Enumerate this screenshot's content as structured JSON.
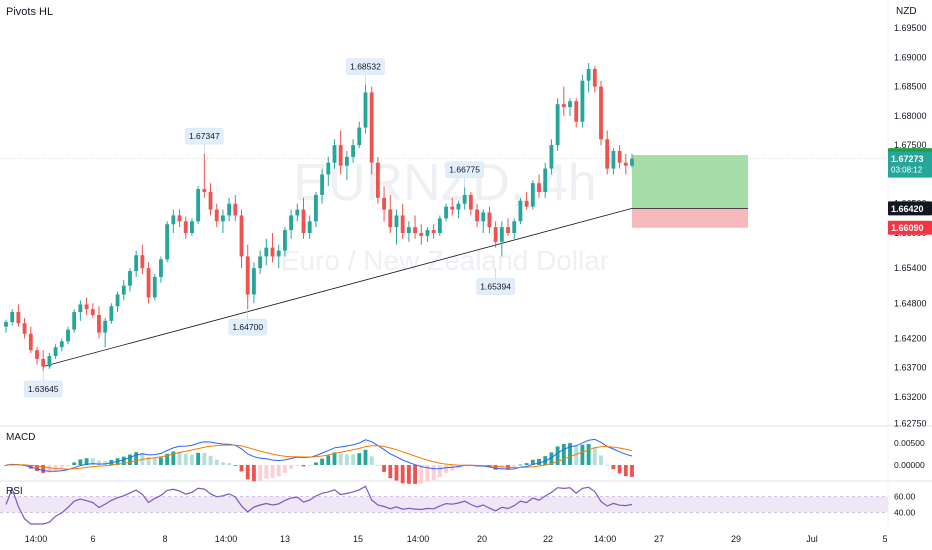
{
  "indicator_main": "Pivots HL",
  "price_axis": {
    "currency": "NZD",
    "ticks": [
      "1.69500",
      "1.69000",
      "1.68500",
      "1.68000",
      "1.67500",
      "1.66500",
      "1.66000",
      "1.65400",
      "1.64800",
      "1.64200",
      "1.63700",
      "1.63200",
      "1.62750"
    ]
  },
  "watermark": {
    "symbol": "EURNZD, 4h",
    "name": "Euro / New Zealand Dollar"
  },
  "price_tags": {
    "target": "1.67330",
    "last": "1.67273",
    "countdown": "03:08:12",
    "entry": "1.66420",
    "stop": "1.66090"
  },
  "colors": {
    "up": "#26a69a",
    "down": "#ef5350",
    "target_zone": "#a5dca8",
    "stop_zone": "#f6b9bc",
    "macd_line": "#2962ff",
    "signal_line": "#f57c00",
    "rsi_line": "#7e57c2",
    "rsi_band": "#ede7f6"
  },
  "pivots": [
    "1.63645",
    "1.67347",
    "1.64700",
    "1.68532",
    "1.66775",
    "1.65394"
  ],
  "time_axis": [
    "14:00",
    "6",
    "8",
    "14:00",
    "13",
    "15",
    "14:00",
    "20",
    "22",
    "14:00",
    "27",
    "29",
    "Jul",
    "5"
  ],
  "macd": {
    "label": "MACD",
    "ticks": [
      "0.00500",
      "0.00000"
    ]
  },
  "rsi": {
    "label": "RSI",
    "ticks": [
      "60.00",
      "40.00"
    ]
  },
  "chart_data": {
    "type": "candlestick",
    "symbol": "EURNZD",
    "timeframe": "4h",
    "y_range": [
      1.6275,
      1.697
    ],
    "ohlc": [
      [
        1.644,
        1.6452,
        1.643,
        1.6448
      ],
      [
        1.6448,
        1.647,
        1.6442,
        1.6465
      ],
      [
        1.6465,
        1.6478,
        1.644,
        1.6446
      ],
      [
        1.6446,
        1.6455,
        1.642,
        1.6428
      ],
      [
        1.6428,
        1.644,
        1.6395,
        1.64
      ],
      [
        1.64,
        1.6405,
        1.6375,
        1.6385
      ],
      [
        1.6385,
        1.64,
        1.6365,
        1.6372
      ],
      [
        1.6372,
        1.6395,
        1.6368,
        1.639
      ],
      [
        1.639,
        1.641,
        1.6385,
        1.6405
      ],
      [
        1.6405,
        1.642,
        1.6398,
        1.6415
      ],
      [
        1.6415,
        1.644,
        1.641,
        1.6435
      ],
      [
        1.6435,
        1.647,
        1.643,
        1.6465
      ],
      [
        1.6465,
        1.6485,
        1.645,
        1.6478
      ],
      [
        1.6478,
        1.649,
        1.646,
        1.647
      ],
      [
        1.647,
        1.648,
        1.6455,
        1.646
      ],
      [
        1.646,
        1.6475,
        1.642,
        1.643
      ],
      [
        1.643,
        1.6455,
        1.6405,
        1.645
      ],
      [
        1.645,
        1.648,
        1.6445,
        1.6475
      ],
      [
        1.6475,
        1.65,
        1.6465,
        1.6495
      ],
      [
        1.6495,
        1.652,
        1.6485,
        1.651
      ],
      [
        1.651,
        1.654,
        1.65,
        1.6535
      ],
      [
        1.6535,
        1.657,
        1.6525,
        1.6562
      ],
      [
        1.6562,
        1.658,
        1.653,
        1.654
      ],
      [
        1.654,
        1.655,
        1.648,
        1.649
      ],
      [
        1.649,
        1.653,
        1.6485,
        1.6525
      ],
      [
        1.6525,
        1.656,
        1.6515,
        1.6555
      ],
      [
        1.6555,
        1.662,
        1.655,
        1.6615
      ],
      [
        1.6615,
        1.664,
        1.66,
        1.663
      ],
      [
        1.663,
        1.664,
        1.661,
        1.662
      ],
      [
        1.662,
        1.6628,
        1.659,
        1.66
      ],
      [
        1.66,
        1.6625,
        1.6595,
        1.662
      ],
      [
        1.662,
        1.668,
        1.6615,
        1.6675
      ],
      [
        1.6675,
        1.6735,
        1.666,
        1.667
      ],
      [
        1.667,
        1.6685,
        1.663,
        1.664
      ],
      [
        1.664,
        1.665,
        1.661,
        1.662
      ],
      [
        1.662,
        1.664,
        1.66,
        1.663
      ],
      [
        1.663,
        1.666,
        1.662,
        1.665
      ],
      [
        1.665,
        1.6665,
        1.662,
        1.663
      ],
      [
        1.663,
        1.664,
        1.654,
        1.656
      ],
      [
        1.656,
        1.658,
        1.647,
        1.6495
      ],
      [
        1.6495,
        1.655,
        1.648,
        1.654
      ],
      [
        1.654,
        1.657,
        1.653,
        1.656
      ],
      [
        1.656,
        1.659,
        1.6545,
        1.6575
      ],
      [
        1.6575,
        1.66,
        1.655,
        1.656
      ],
      [
        1.656,
        1.658,
        1.654,
        1.657
      ],
      [
        1.657,
        1.661,
        1.656,
        1.6605
      ],
      [
        1.6605,
        1.664,
        1.659,
        1.663
      ],
      [
        1.663,
        1.665,
        1.662,
        1.664
      ],
      [
        1.664,
        1.666,
        1.659,
        1.66
      ],
      [
        1.66,
        1.663,
        1.659,
        1.662
      ],
      [
        1.662,
        1.667,
        1.661,
        1.6665
      ],
      [
        1.6665,
        1.671,
        1.665,
        1.67
      ],
      [
        1.67,
        1.673,
        1.668,
        1.672
      ],
      [
        1.672,
        1.676,
        1.671,
        1.675
      ],
      [
        1.675,
        1.6775,
        1.67,
        1.6715
      ],
      [
        1.6715,
        1.674,
        1.669,
        1.673
      ],
      [
        1.673,
        1.676,
        1.672,
        1.675
      ],
      [
        1.675,
        1.679,
        1.6745,
        1.678
      ],
      [
        1.678,
        1.6853,
        1.677,
        1.684
      ],
      [
        1.684,
        1.685,
        1.67,
        1.672
      ],
      [
        1.672,
        1.673,
        1.665,
        1.666
      ],
      [
        1.666,
        1.668,
        1.662,
        1.664
      ],
      [
        1.664,
        1.6665,
        1.66,
        1.661
      ],
      [
        1.661,
        1.664,
        1.658,
        1.663
      ],
      [
        1.663,
        1.665,
        1.659,
        1.66
      ],
      [
        1.66,
        1.662,
        1.6585,
        1.661
      ],
      [
        1.661,
        1.663,
        1.659,
        1.66
      ],
      [
        1.66,
        1.6615,
        1.658,
        1.6595
      ],
      [
        1.6595,
        1.661,
        1.6585,
        1.6605
      ],
      [
        1.6605,
        1.6615,
        1.659,
        1.66
      ],
      [
        1.66,
        1.663,
        1.6595,
        1.6625
      ],
      [
        1.6625,
        1.665,
        1.662,
        1.6645
      ],
      [
        1.6645,
        1.666,
        1.663,
        1.664
      ],
      [
        1.664,
        1.6655,
        1.6625,
        1.665
      ],
      [
        1.665,
        1.6678,
        1.664,
        1.6665
      ],
      [
        1.6665,
        1.667,
        1.663,
        1.664
      ],
      [
        1.664,
        1.665,
        1.661,
        1.662
      ],
      [
        1.662,
        1.664,
        1.66,
        1.6635
      ],
      [
        1.6635,
        1.6645,
        1.66,
        1.661
      ],
      [
        1.661,
        1.662,
        1.6575,
        1.6585
      ],
      [
        1.6585,
        1.662,
        1.656,
        1.661
      ],
      [
        1.661,
        1.6625,
        1.6595,
        1.66
      ],
      [
        1.66,
        1.6625,
        1.659,
        1.662
      ],
      [
        1.662,
        1.666,
        1.6615,
        1.6655
      ],
      [
        1.6655,
        1.667,
        1.664,
        1.6645
      ],
      [
        1.6645,
        1.669,
        1.664,
        1.6685
      ],
      [
        1.6685,
        1.67,
        1.666,
        1.667
      ],
      [
        1.667,
        1.672,
        1.666,
        1.671
      ],
      [
        1.671,
        1.676,
        1.67,
        1.675
      ],
      [
        1.675,
        1.683,
        1.674,
        1.682
      ],
      [
        1.682,
        1.685,
        1.68,
        1.6815
      ],
      [
        1.6815,
        1.683,
        1.68,
        1.6825
      ],
      [
        1.6825,
        1.683,
        1.678,
        1.679
      ],
      [
        1.679,
        1.687,
        1.678,
        1.686
      ],
      [
        1.686,
        1.689,
        1.684,
        1.688
      ],
      [
        1.688,
        1.6885,
        1.684,
        1.685
      ],
      [
        1.685,
        1.686,
        1.675,
        1.676
      ],
      [
        1.676,
        1.6775,
        1.67,
        1.671
      ],
      [
        1.671,
        1.6745,
        1.67,
        1.674
      ],
      [
        1.674,
        1.675,
        1.671,
        1.672
      ],
      [
        1.672,
        1.6735,
        1.67,
        1.6715
      ],
      [
        1.6715,
        1.6735,
        1.6712,
        1.6727
      ]
    ],
    "trendline": {
      "from": 1.6372,
      "to": 1.6642
    },
    "position": {
      "entry": 1.6642,
      "target": 1.6733,
      "stop": 1.6609
    },
    "macd_scale": [
      -0.0025,
      0.0075
    ],
    "rsi_scale": [
      25,
      75
    ],
    "rsi_band": [
      40,
      60
    ]
  }
}
